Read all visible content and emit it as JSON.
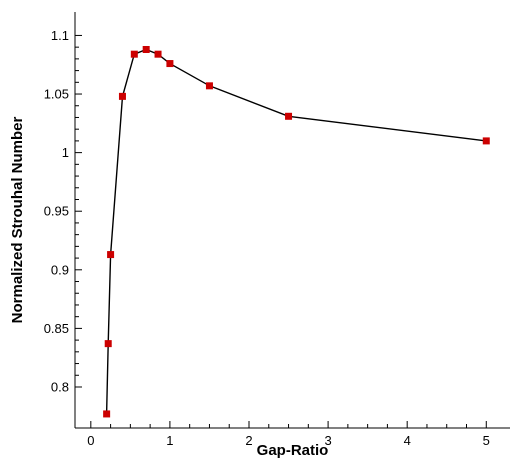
{
  "chart_data": {
    "type": "line",
    "title": "",
    "xlabel": "Gap-Ratio",
    "ylabel": "Normalized Strouhal Number",
    "xlim": [
      -0.2,
      5.3
    ],
    "ylim": [
      0.765,
      1.12
    ],
    "xticks": [
      0,
      1,
      2,
      3,
      4,
      5
    ],
    "xtick_labels": [
      "0",
      "1",
      "2",
      "3",
      "4",
      "5"
    ],
    "yticks": [
      0.8,
      0.85,
      0.9,
      0.95,
      1.0,
      1.05,
      1.1
    ],
    "ytick_labels": [
      "0.8",
      "0.85",
      "0.9",
      "0.95",
      "1",
      "1.05",
      "1.1"
    ],
    "grid": false,
    "legend": "none",
    "line_color": "#000000",
    "marker_color": "#cc0000",
    "marker": "square",
    "series": [
      {
        "x": [
          0.2,
          0.22,
          0.25,
          0.4,
          0.55,
          0.7,
          0.85,
          1.0,
          1.5,
          2.5,
          5.0
        ],
        "y": [
          0.777,
          0.837,
          0.913,
          1.048,
          1.084,
          1.088,
          1.084,
          1.076,
          1.057,
          1.031,
          1.01
        ]
      }
    ]
  }
}
